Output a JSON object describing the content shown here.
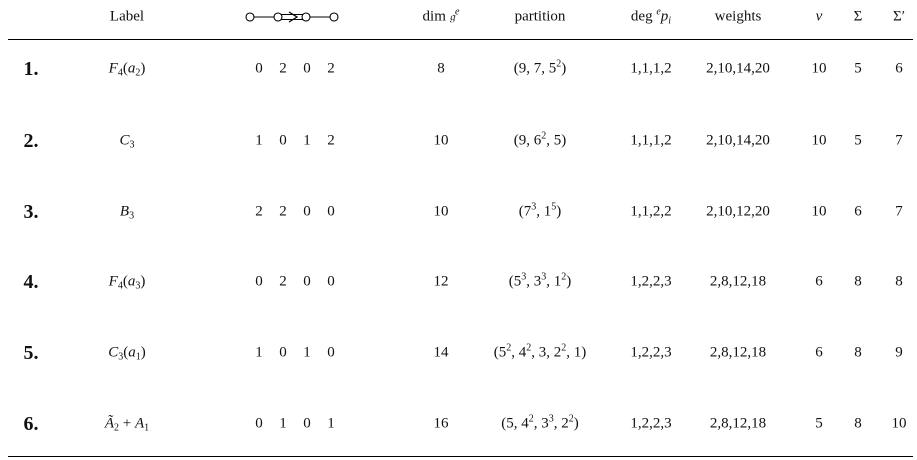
{
  "header": {
    "label": "Label",
    "dim_text": "dim",
    "dim_sup": "e",
    "partition": "partition",
    "deg_text": "deg",
    "deg_sup": "e",
    "deg_p": "p",
    "deg_sub": "i",
    "weights": "weights",
    "nu": "ν",
    "sigma": "Σ",
    "sigma_prime": "Σ′",
    "dynkin_icon": "f4-dynkin-diagram-icon"
  },
  "rows": [
    {
      "num": "1.",
      "label": "F_4(a_2)",
      "d": [
        "0",
        "2",
        "0",
        "2"
      ],
      "dim": "8",
      "partition": "(9, 7, 5^2)",
      "deg": "1,1,1,2",
      "weights": "2,10,14,20",
      "nu": "10",
      "sigma": "5",
      "sigma_prime": "6"
    },
    {
      "num": "2.",
      "label": "C_3",
      "d": [
        "1",
        "0",
        "1",
        "2"
      ],
      "dim": "10",
      "partition": "(9, 6^2, 5)",
      "deg": "1,1,1,2",
      "weights": "2,10,14,20",
      "nu": "10",
      "sigma": "5",
      "sigma_prime": "7"
    },
    {
      "num": "3.",
      "label": "B_3",
      "d": [
        "2",
        "2",
        "0",
        "0"
      ],
      "dim": "10",
      "partition": "(7^3, 1^5)",
      "deg": "1,1,2,2",
      "weights": "2,10,12,20",
      "nu": "10",
      "sigma": "6",
      "sigma_prime": "7"
    },
    {
      "num": "4.",
      "label": "F_4(a_3)",
      "d": [
        "0",
        "2",
        "0",
        "0"
      ],
      "dim": "12",
      "partition": "(5^3, 3^3, 1^2)",
      "deg": "1,2,2,3",
      "weights": "2,8,12,18",
      "nu": "6",
      "sigma": "8",
      "sigma_prime": "8"
    },
    {
      "num": "5.",
      "label": "C_3(a_1)",
      "d": [
        "1",
        "0",
        "1",
        "0"
      ],
      "dim": "14",
      "partition": "(5^2, 4^2, 3, 2^2, 1)",
      "deg": "1,2,2,3",
      "weights": "2,8,12,18",
      "nu": "6",
      "sigma": "8",
      "sigma_prime": "9"
    },
    {
      "num": "6.",
      "label": "Ã_2 + A_1",
      "d": [
        "0",
        "1",
        "0",
        "1"
      ],
      "dim": "16",
      "partition": "(5, 4^2, 3^3, 2^2)",
      "deg": "1,2,2,3",
      "weights": "2,8,12,18",
      "nu": "5",
      "sigma": "8",
      "sigma_prime": "10"
    }
  ]
}
